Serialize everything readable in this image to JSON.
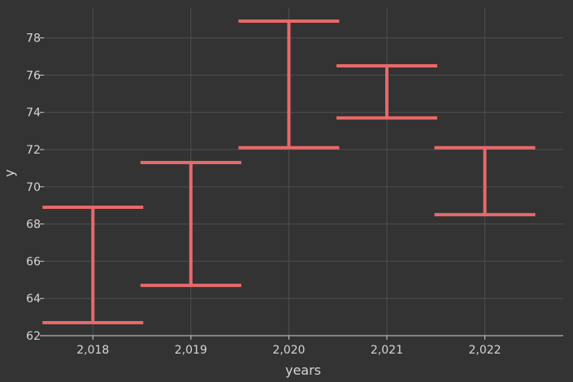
{
  "chart_data": {
    "type": "errorbar",
    "xlabel": "years",
    "ylabel": "y",
    "x_ticks": [
      "2,018",
      "2,019",
      "2,020",
      "2,021",
      "2,022"
    ],
    "y_ticks": [
      "62",
      "64",
      "66",
      "68",
      "70",
      "72",
      "74",
      "76",
      "78"
    ],
    "xlim": [
      2017.5,
      2022.8
    ],
    "ylim": [
      62,
      79.6
    ],
    "grid": true,
    "bar_color": "#e8696a",
    "x": [
      2018,
      2019,
      2020,
      2021,
      2022
    ],
    "ymin": [
      62.7,
      64.7,
      72.1,
      73.7,
      68.5
    ],
    "ymax": [
      68.9,
      71.3,
      78.9,
      76.5,
      72.1
    ]
  }
}
